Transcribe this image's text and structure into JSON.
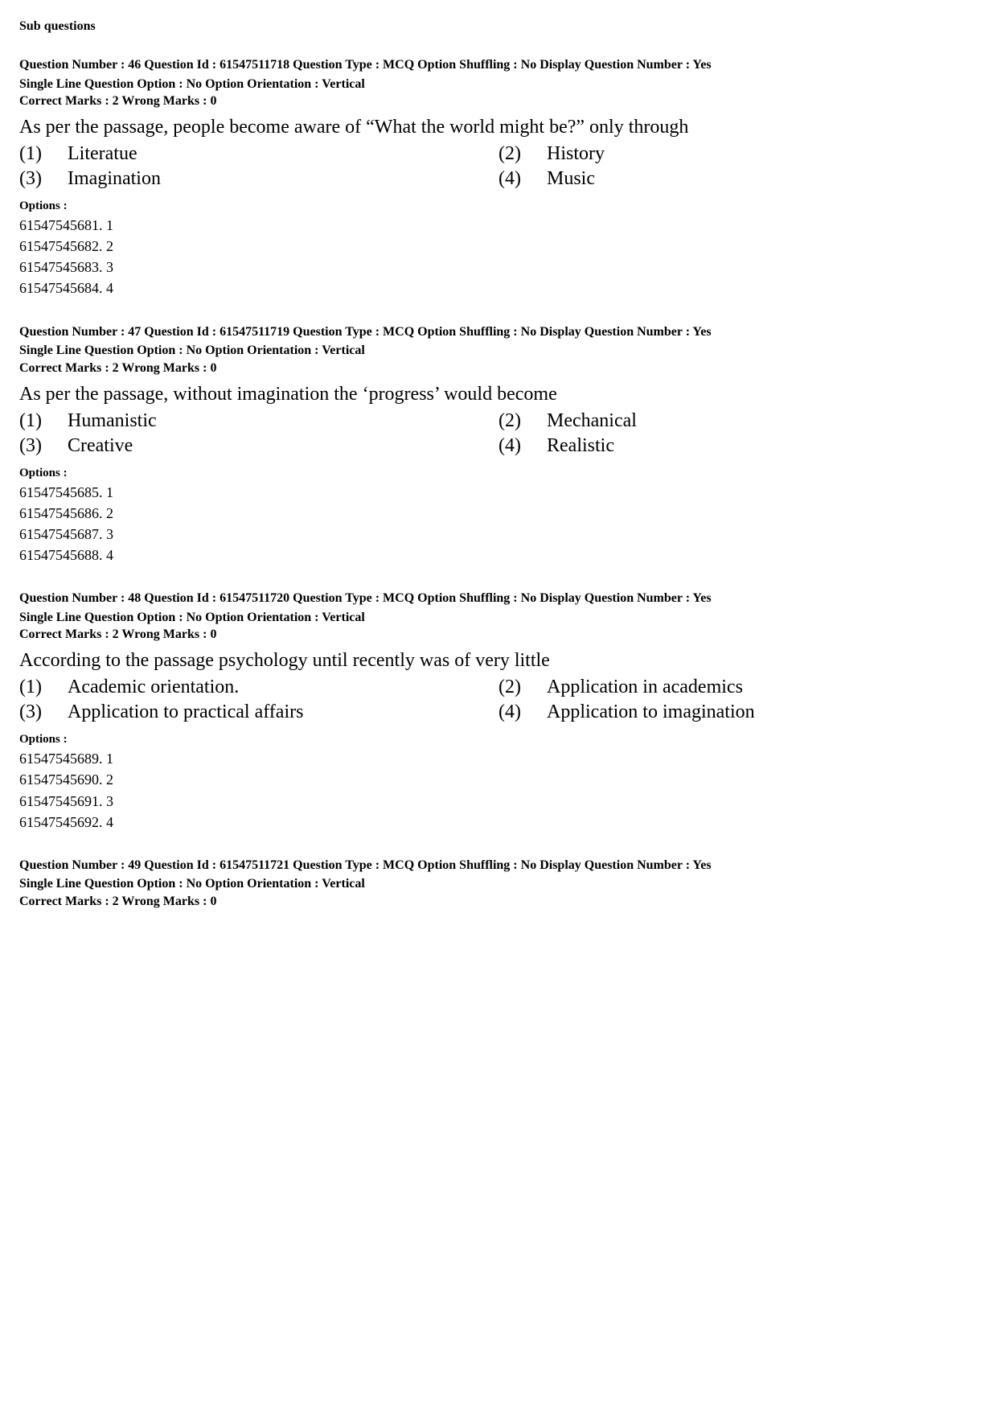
{
  "header": "Sub questions",
  "questions": [
    {
      "meta_line1": "Question Number : 46  Question Id : 61547511718  Question Type : MCQ  Option Shuffling : No  Display Question Number : Yes",
      "meta_line2": "Single Line Question Option : No  Option Orientation : Vertical",
      "marks": "Correct Marks : 2  Wrong Marks : 0",
      "text": "As per the passage, people become aware of “What the world might be?” only through",
      "ans": {
        "n1": "(1)",
        "t1": "Literatue",
        "n2": "(2)",
        "t2": "History",
        "n3": "(3)",
        "t3": "Imagination",
        "n4": "(4)",
        "t4": "Music"
      },
      "options_head": "Options :",
      "options": [
        "61547545681. 1",
        "61547545682. 2",
        "61547545683. 3",
        "61547545684. 4"
      ]
    },
    {
      "meta_line1": "Question Number : 47  Question Id : 61547511719  Question Type : MCQ  Option Shuffling : No  Display Question Number : Yes",
      "meta_line2": "Single Line Question Option : No  Option Orientation : Vertical",
      "marks": "Correct Marks : 2  Wrong Marks : 0",
      "text": "As per the passage, without imagination the ‘progress’ would become",
      "ans": {
        "n1": "(1)",
        "t1": "Humanistic",
        "n2": "(2)",
        "t2": "Mechanical",
        "n3": "(3)",
        "t3": "Creative",
        "n4": "(4)",
        "t4": "Realistic"
      },
      "options_head": "Options :",
      "options": [
        "61547545685. 1",
        "61547545686. 2",
        "61547545687. 3",
        "61547545688. 4"
      ]
    },
    {
      "meta_line1": "Question Number : 48  Question Id : 61547511720  Question Type : MCQ  Option Shuffling : No  Display Question Number : Yes",
      "meta_line2": "Single Line Question Option : No  Option Orientation : Vertical",
      "marks": "Correct Marks : 2  Wrong Marks : 0",
      "text": "According to the passage psychology until recently was of very little",
      "ans": {
        "n1": "(1)",
        "t1": "Academic orientation.",
        "n2": "(2)",
        "t2": "Application in academics",
        "n3": "(3)",
        "t3": "Application to practical affairs",
        "n4": "(4)",
        "t4": "Application to imagination"
      },
      "options_head": "Options :",
      "options": [
        "61547545689. 1",
        "61547545690. 2",
        "61547545691. 3",
        "61547545692. 4"
      ]
    },
    {
      "meta_line1": "Question Number : 49  Question Id : 61547511721  Question Type : MCQ  Option Shuffling : No  Display Question Number : Yes",
      "meta_line2": "Single Line Question Option : No  Option Orientation : Vertical",
      "marks": "Correct Marks : 2  Wrong Marks : 0",
      "text": "",
      "ans": {
        "n1": "",
        "t1": "",
        "n2": "",
        "t2": "",
        "n3": "",
        "t3": "",
        "n4": "",
        "t4": ""
      },
      "options_head": "",
      "options": []
    }
  ]
}
